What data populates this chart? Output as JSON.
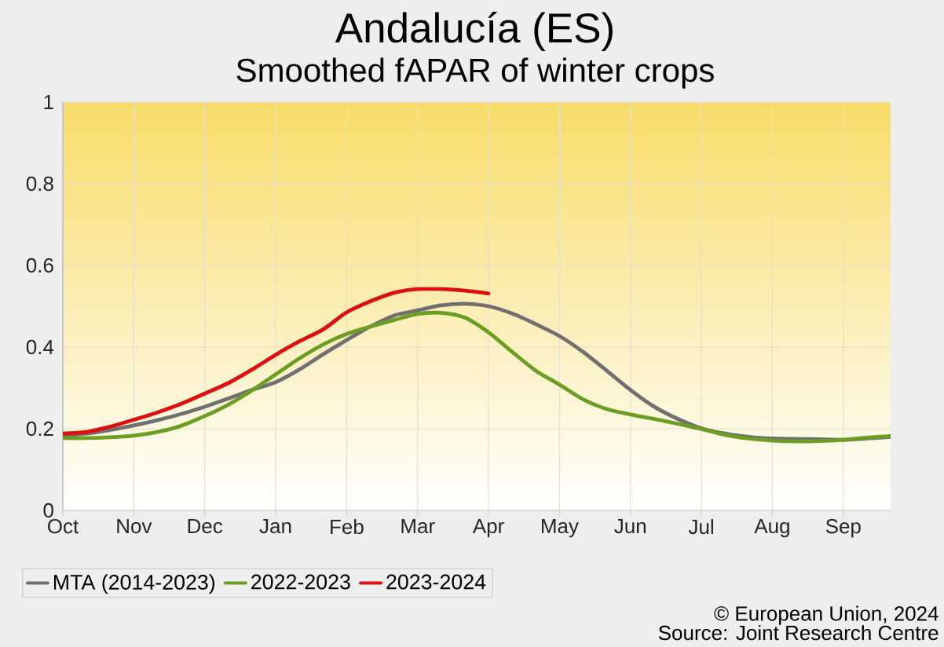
{
  "chart_data": {
    "type": "line",
    "title": "Andalucía (ES)",
    "subtitle": "Smoothed fAPAR of winter crops",
    "annotations": [
      "© European Union, 2024",
      "Source: Joint Research Centre"
    ],
    "categories": [
      "Oct",
      null,
      null,
      "Nov",
      null,
      null,
      "Dec",
      null,
      null,
      "Jan",
      null,
      null,
      "Feb",
      null,
      null,
      "Mar",
      null,
      null,
      "Apr",
      null,
      null,
      "May",
      null,
      null,
      "Jun",
      null,
      null,
      "Jul",
      null,
      null,
      "Aug",
      null,
      null,
      "Sep",
      null,
      null
    ],
    "ylim": [
      0,
      1
    ],
    "yticks": [
      0,
      0.2,
      0.4,
      0.6,
      0.8,
      1
    ],
    "grid": true,
    "legend": "bottom left",
    "line_style": "solid",
    "series": [
      {
        "name": "MTA (2014-2023)",
        "color": "#707070",
        "values": [
          0.183,
          0.188,
          0.197,
          0.208,
          0.221,
          0.236,
          0.254,
          0.274,
          0.295,
          0.314,
          0.345,
          0.382,
          0.417,
          0.45,
          0.477,
          0.49,
          0.502,
          0.506,
          0.5,
          0.482,
          0.456,
          0.427,
          0.388,
          0.342,
          0.295,
          0.254,
          0.224,
          0.201,
          0.188,
          0.18,
          0.176,
          0.175,
          0.174,
          0.173,
          0.176,
          0.18
        ]
      },
      {
        "name": "2022-2023",
        "color": "#6b9e23",
        "values": [
          0.177,
          0.177,
          0.179,
          0.183,
          0.192,
          0.207,
          0.231,
          0.259,
          0.294,
          0.333,
          0.372,
          0.406,
          0.432,
          0.45,
          0.466,
          0.481,
          0.484,
          0.472,
          0.436,
          0.388,
          0.342,
          0.308,
          0.272,
          0.248,
          0.235,
          0.224,
          0.212,
          0.199,
          0.185,
          0.176,
          0.171,
          0.169,
          0.17,
          0.173,
          0.178,
          0.182
        ]
      },
      {
        "name": "2023-2024",
        "color": "#dd1010",
        "values": [
          0.188,
          0.192,
          0.205,
          0.222,
          0.24,
          0.261,
          0.286,
          0.312,
          0.345,
          0.381,
          0.414,
          0.443,
          0.485,
          0.512,
          0.533,
          0.542,
          0.542,
          0.538,
          0.531,
          null,
          null,
          null,
          null,
          null,
          null,
          null,
          null,
          null,
          null,
          null,
          null,
          null,
          null,
          null,
          null,
          null
        ]
      }
    ]
  }
}
